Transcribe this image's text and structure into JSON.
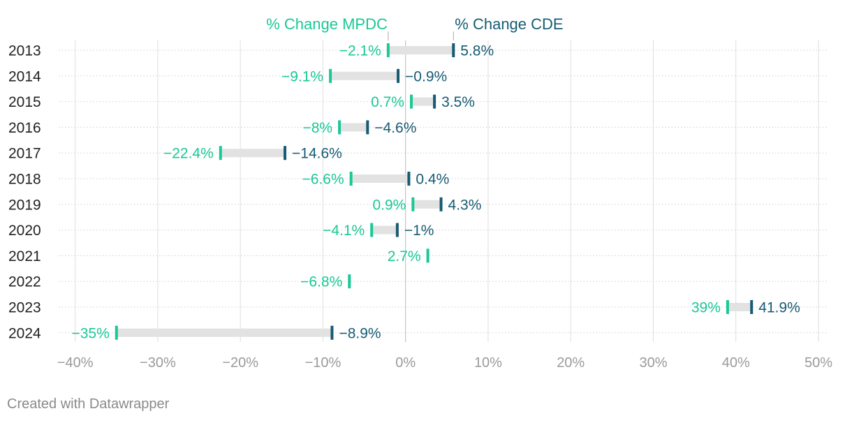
{
  "chart_data": {
    "type": "range-dot",
    "categories": [
      "2013",
      "2014",
      "2015",
      "2016",
      "2017",
      "2018",
      "2019",
      "2020",
      "2021",
      "2022",
      "2023",
      "2024"
    ],
    "series": [
      {
        "name": "% Change MPDC",
        "color": "#19c896",
        "values": [
          -2.1,
          -9.1,
          0.7,
          -8,
          -22.4,
          -6.6,
          0.9,
          -4.1,
          2.7,
          -6.8,
          39,
          -35
        ],
        "labels": [
          "−2.1%",
          "−9.1%",
          "0.7%",
          "−8%",
          "−22.4%",
          "−6.6%",
          "0.9%",
          "−4.1%",
          "2.7%",
          "−6.8%",
          "39%",
          "−35%"
        ]
      },
      {
        "name": "% Change CDE",
        "color": "#175b73",
        "values": [
          5.8,
          -0.9,
          3.5,
          -4.6,
          -14.6,
          0.4,
          4.3,
          -1,
          null,
          null,
          41.9,
          -8.9
        ],
        "labels": [
          "5.8%",
          "−0.9%",
          "3.5%",
          "−4.6%",
          "−14.6%",
          "0.4%",
          "4.3%",
          "−1%",
          "",
          "",
          "41.9%",
          "−8.9%"
        ]
      }
    ],
    "x_ticks": [
      -40,
      -30,
      -20,
      -10,
      0,
      10,
      20,
      30,
      40,
      50
    ],
    "x_tick_labels": [
      "−40%",
      "−30%",
      "−20%",
      "−10%",
      "0%",
      "10%",
      "20%",
      "30%",
      "40%",
      "50%"
    ],
    "xlim": [
      -42,
      50
    ],
    "range_bar_color": "#e2e2e2",
    "gridlines": true,
    "legend_placement": "top"
  },
  "footer": {
    "credit": "Created with Datawrapper"
  }
}
